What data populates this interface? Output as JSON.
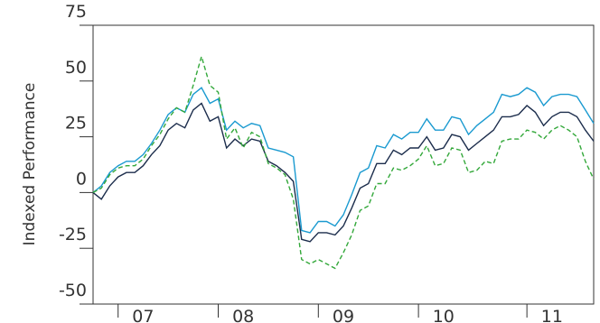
{
  "chart_data": {
    "type": "line",
    "y_label": "Indexed Performance",
    "categories": [
      null,
      null,
      null,
      null,
      null,
      null,
      "07",
      null,
      null,
      null,
      null,
      null,
      null,
      null,
      null,
      null,
      null,
      null,
      "08",
      null,
      null,
      null,
      null,
      null,
      null,
      null,
      null,
      null,
      null,
      null,
      "09",
      null,
      null,
      null,
      null,
      null,
      null,
      null,
      null,
      null,
      null,
      null,
      "10",
      null,
      null,
      null,
      null,
      null,
      null,
      null,
      null,
      null,
      null,
      null,
      null,
      "11",
      null,
      null,
      null,
      null,
      null
    ],
    "ylim": [
      -50,
      75
    ],
    "yticks": [
      -50,
      -25,
      0,
      25,
      50,
      75
    ],
    "series": [
      {
        "color": "#1a9ad0",
        "dash": false,
        "values": [
          0,
          3,
          9,
          12,
          14,
          14,
          17,
          22,
          28,
          35,
          38,
          36,
          44,
          47,
          40,
          42,
          28,
          32,
          29,
          31,
          30,
          20,
          19,
          18,
          16,
          -17,
          -18,
          -13,
          -13,
          -15,
          -10,
          -1,
          9,
          11,
          21,
          20,
          26,
          24,
          27,
          27,
          33,
          28,
          28,
          34,
          33,
          26,
          30,
          33,
          36,
          44,
          43,
          44,
          47,
          45,
          39,
          43,
          44,
          44,
          43,
          37,
          31
        ]
      },
      {
        "color": "#1c2d4c",
        "dash": false,
        "values": [
          0,
          -3,
          3,
          7,
          9,
          9,
          12,
          17,
          21,
          28,
          31,
          29,
          37,
          40,
          32,
          34,
          20,
          24,
          21,
          24,
          23,
          14,
          12,
          9,
          5,
          -21,
          -22,
          -18,
          -18,
          -19,
          -15,
          -7,
          2,
          4,
          13,
          13,
          19,
          17,
          20,
          20,
          25,
          19,
          20,
          26,
          25,
          19,
          22,
          25,
          28,
          34,
          34,
          35,
          39,
          36,
          30,
          34,
          36,
          36,
          34,
          28,
          23
        ]
      },
      {
        "color": "#33a83a",
        "dash": true,
        "values": [
          0,
          2,
          8,
          11,
          12,
          12,
          15,
          21,
          26,
          33,
          38,
          36,
          48,
          61,
          48,
          45,
          24,
          29,
          20,
          27,
          25,
          13,
          11,
          8,
          -3,
          -30,
          -32,
          -30,
          -32,
          -34,
          -27,
          -19,
          -8,
          -6,
          4,
          4,
          11,
          10,
          12,
          15,
          21,
          12,
          13,
          20,
          19,
          9,
          10,
          14,
          13,
          23,
          24,
          24,
          28,
          27,
          24,
          28,
          30,
          28,
          25,
          14,
          6
        ]
      }
    ]
  }
}
